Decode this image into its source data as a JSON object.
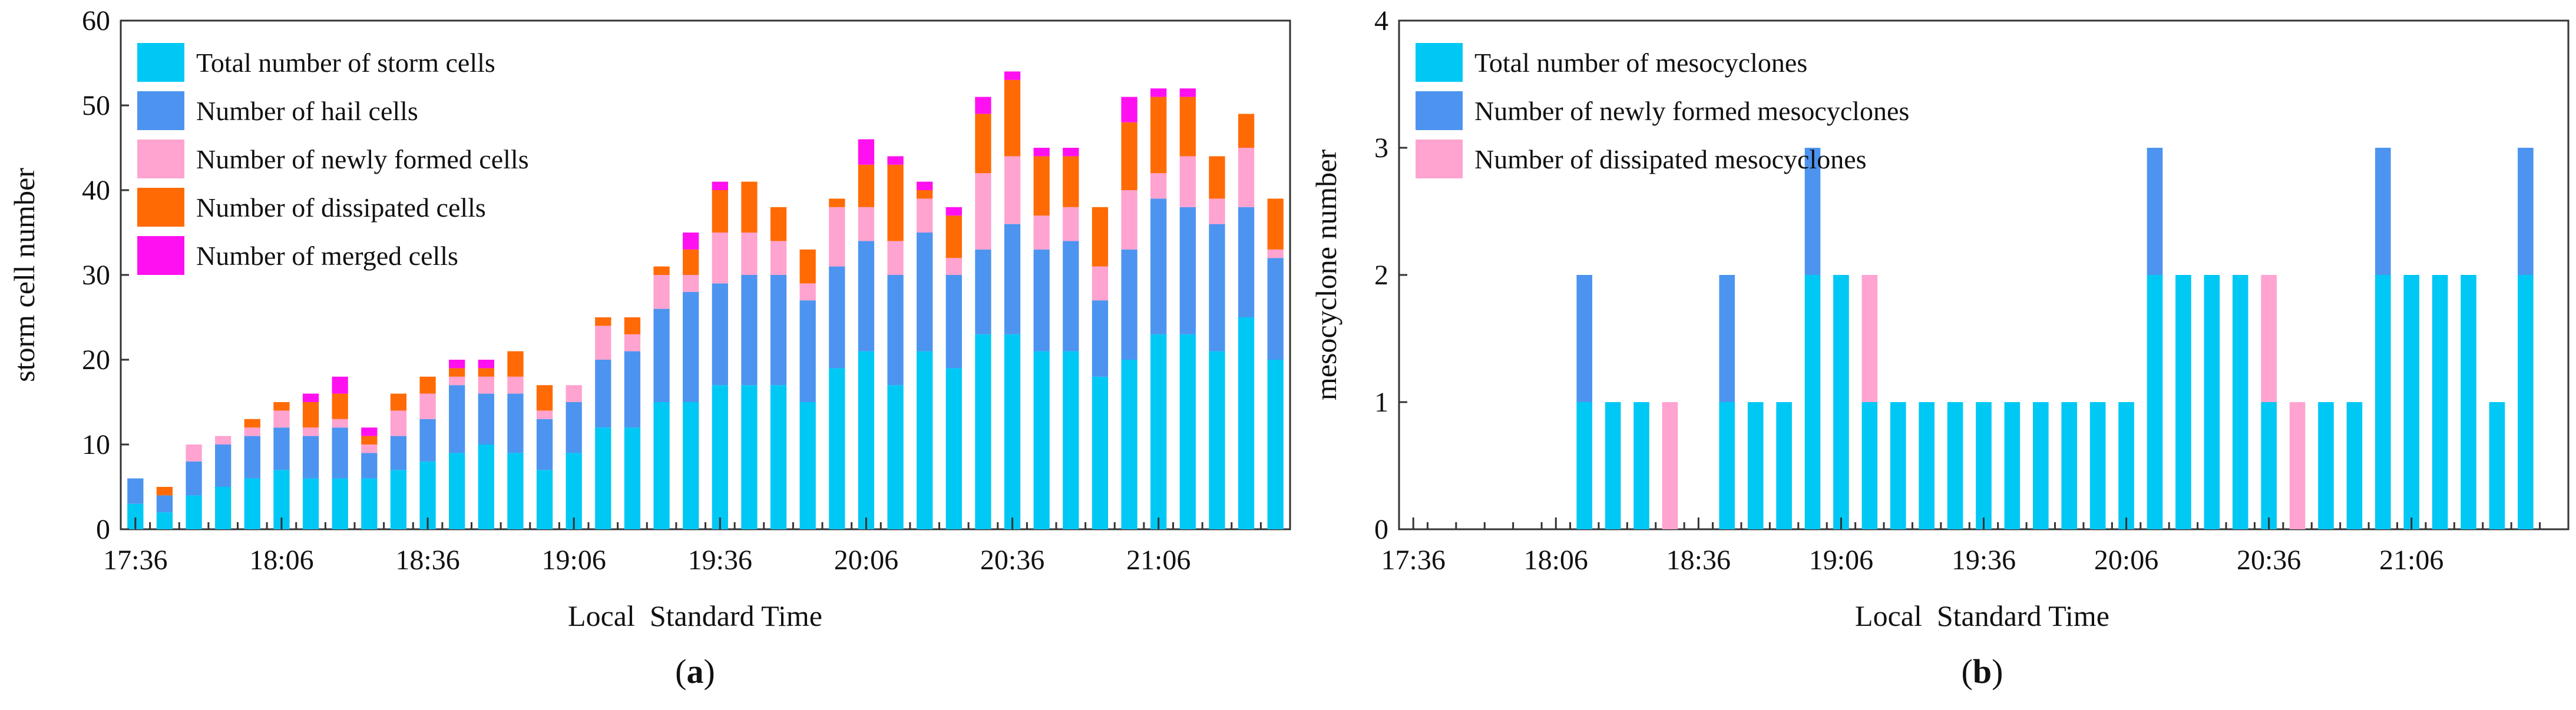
{
  "colors": {
    "total": "#00C8F5",
    "hail": "#4C94F0",
    "new": "#FFA3D0",
    "dissipated": "#FF6A05",
    "merged": "#FF10F0",
    "meso_total": "#00C8F5",
    "meso_new": "#4C94F0",
    "meso_dissipated": "#FFA3D0"
  },
  "chart_data": [
    {
      "panel": "(a)",
      "type": "bar",
      "stacked": true,
      "xlabel": "Local  Standard Time",
      "ylabel": "storm cell number",
      "ylim": [
        0,
        60
      ],
      "yticks": [
        0,
        10,
        20,
        30,
        40,
        50,
        60
      ],
      "xtick_labels": [
        "17:36",
        "18:06",
        "18:36",
        "19:06",
        "19:36",
        "20:06",
        "20:36",
        "21:06"
      ],
      "xtick_every": 5,
      "legend_position": "top-left",
      "categories": [
        "17:36",
        "17:42",
        "17:48",
        "17:54",
        "18:00",
        "18:06",
        "18:12",
        "18:18",
        "18:24",
        "18:30",
        "18:36",
        "18:42",
        "18:48",
        "18:54",
        "19:00",
        "19:06",
        "19:12",
        "19:18",
        "19:24",
        "19:30",
        "19:36",
        "19:42",
        "19:48",
        "19:54",
        "20:00",
        "20:06",
        "20:12",
        "20:18",
        "20:24",
        "20:30",
        "20:36",
        "20:42",
        "20:48",
        "20:54",
        "21:00",
        "21:06",
        "21:12",
        "21:18",
        "21:24",
        "21:30"
      ],
      "series": [
        {
          "name": "Total number of storm cells",
          "color_key": "total",
          "values": [
            3,
            2,
            4,
            5,
            6,
            7,
            6,
            6,
            6,
            7,
            8,
            9,
            10,
            9,
            7,
            9,
            12,
            12,
            15,
            15,
            17,
            17,
            17,
            15,
            19,
            21,
            17,
            21,
            19,
            23,
            23,
            21,
            21,
            18,
            20,
            23,
            23,
            21,
            25,
            20
          ]
        },
        {
          "name": "Number of hail cells",
          "color_key": "hail",
          "values": [
            3,
            2,
            4,
            5,
            5,
            5,
            5,
            6,
            3,
            4,
            5,
            8,
            6,
            7,
            6,
            6,
            8,
            9,
            11,
            13,
            12,
            13,
            13,
            12,
            12,
            13,
            13,
            14,
            11,
            10,
            13,
            12,
            13,
            9,
            13,
            16,
            15,
            15,
            13,
            12
          ]
        },
        {
          "name": "Number of newly formed cells",
          "color_key": "new",
          "values": [
            0,
            0,
            2,
            1,
            1,
            2,
            1,
            1,
            1,
            3,
            3,
            1,
            2,
            2,
            1,
            2,
            4,
            2,
            4,
            2,
            6,
            5,
            4,
            2,
            7,
            4,
            4,
            4,
            2,
            9,
            8,
            4,
            4,
            4,
            7,
            3,
            6,
            3,
            7,
            1
          ]
        },
        {
          "name": "Number of dissipated cells",
          "color_key": "dissipated",
          "values": [
            0,
            1,
            0,
            0,
            1,
            1,
            3,
            3,
            1,
            2,
            2,
            1,
            1,
            3,
            3,
            0,
            1,
            2,
            1,
            3,
            5,
            6,
            4,
            4,
            1,
            5,
            9,
            1,
            5,
            7,
            9,
            7,
            6,
            7,
            8,
            9,
            7,
            5,
            4,
            6
          ]
        },
        {
          "name": "Number of merged cells",
          "color_key": "merged",
          "values": [
            0,
            0,
            0,
            0,
            0,
            0,
            1,
            2,
            1,
            0,
            0,
            1,
            1,
            0,
            0,
            0,
            0,
            0,
            0,
            2,
            1,
            0,
            0,
            0,
            0,
            3,
            1,
            1,
            1,
            2,
            1,
            1,
            1,
            0,
            3,
            1,
            1,
            0,
            0,
            0
          ]
        }
      ],
      "caption": "a"
    },
    {
      "panel": "(b)",
      "type": "bar",
      "stacked": true,
      "xlabel": "Local  Standard Time",
      "ylabel": "mesocyclone number",
      "ylim": [
        0,
        4
      ],
      "yticks": [
        0,
        1,
        2,
        3,
        4
      ],
      "xtick_labels": [
        "17:36",
        "18:06",
        "18:36",
        "19:06",
        "19:36",
        "20:06",
        "20:36",
        "21:06"
      ],
      "xtick_every": 5,
      "legend_position": "top-left",
      "categories": [
        "17:36",
        "17:42",
        "17:48",
        "17:54",
        "18:00",
        "18:06",
        "18:12",
        "18:18",
        "18:24",
        "18:30",
        "18:36",
        "18:42",
        "18:48",
        "18:54",
        "19:00",
        "19:06",
        "19:12",
        "19:18",
        "19:24",
        "19:30",
        "19:36",
        "19:42",
        "19:48",
        "19:54",
        "20:00",
        "20:06",
        "20:12",
        "20:18",
        "20:24",
        "20:30",
        "20:36",
        "20:42",
        "20:48",
        "20:54",
        "21:00",
        "21:06",
        "21:12",
        "21:18",
        "21:24",
        "21:30",
        "21:36"
      ],
      "series": [
        {
          "name": "Total number of mesocyclones",
          "color_key": "meso_total",
          "values": [
            0,
            0,
            0,
            0,
            0,
            0,
            1,
            1,
            1,
            0,
            0,
            1,
            1,
            1,
            2,
            2,
            1,
            1,
            1,
            1,
            1,
            1,
            1,
            1,
            1,
            1,
            2,
            2,
            2,
            2,
            1,
            0,
            1,
            1,
            2,
            2,
            2,
            2,
            1,
            2,
            0
          ]
        },
        {
          "name": "Number of newly formed mesocyclones",
          "color_key": "meso_new",
          "values": [
            0,
            0,
            0,
            0,
            0,
            0,
            1,
            0,
            0,
            0,
            0,
            1,
            0,
            0,
            1,
            0,
            0,
            0,
            0,
            0,
            0,
            0,
            0,
            0,
            0,
            0,
            1,
            0,
            0,
            0,
            0,
            0,
            0,
            0,
            1,
            0,
            0,
            0,
            0,
            1,
            0
          ]
        },
        {
          "name": "Number of dissipated mesocyclones",
          "color_key": "meso_dissipated",
          "values": [
            0,
            0,
            0,
            0,
            0,
            0,
            0,
            0,
            0,
            1,
            0,
            0,
            0,
            0,
            0,
            0,
            1,
            0,
            0,
            0,
            0,
            0,
            0,
            0,
            0,
            0,
            0,
            0,
            0,
            0,
            1,
            1,
            0,
            0,
            0,
            0,
            0,
            0,
            0,
            0,
            0
          ]
        }
      ],
      "caption": "b"
    }
  ]
}
